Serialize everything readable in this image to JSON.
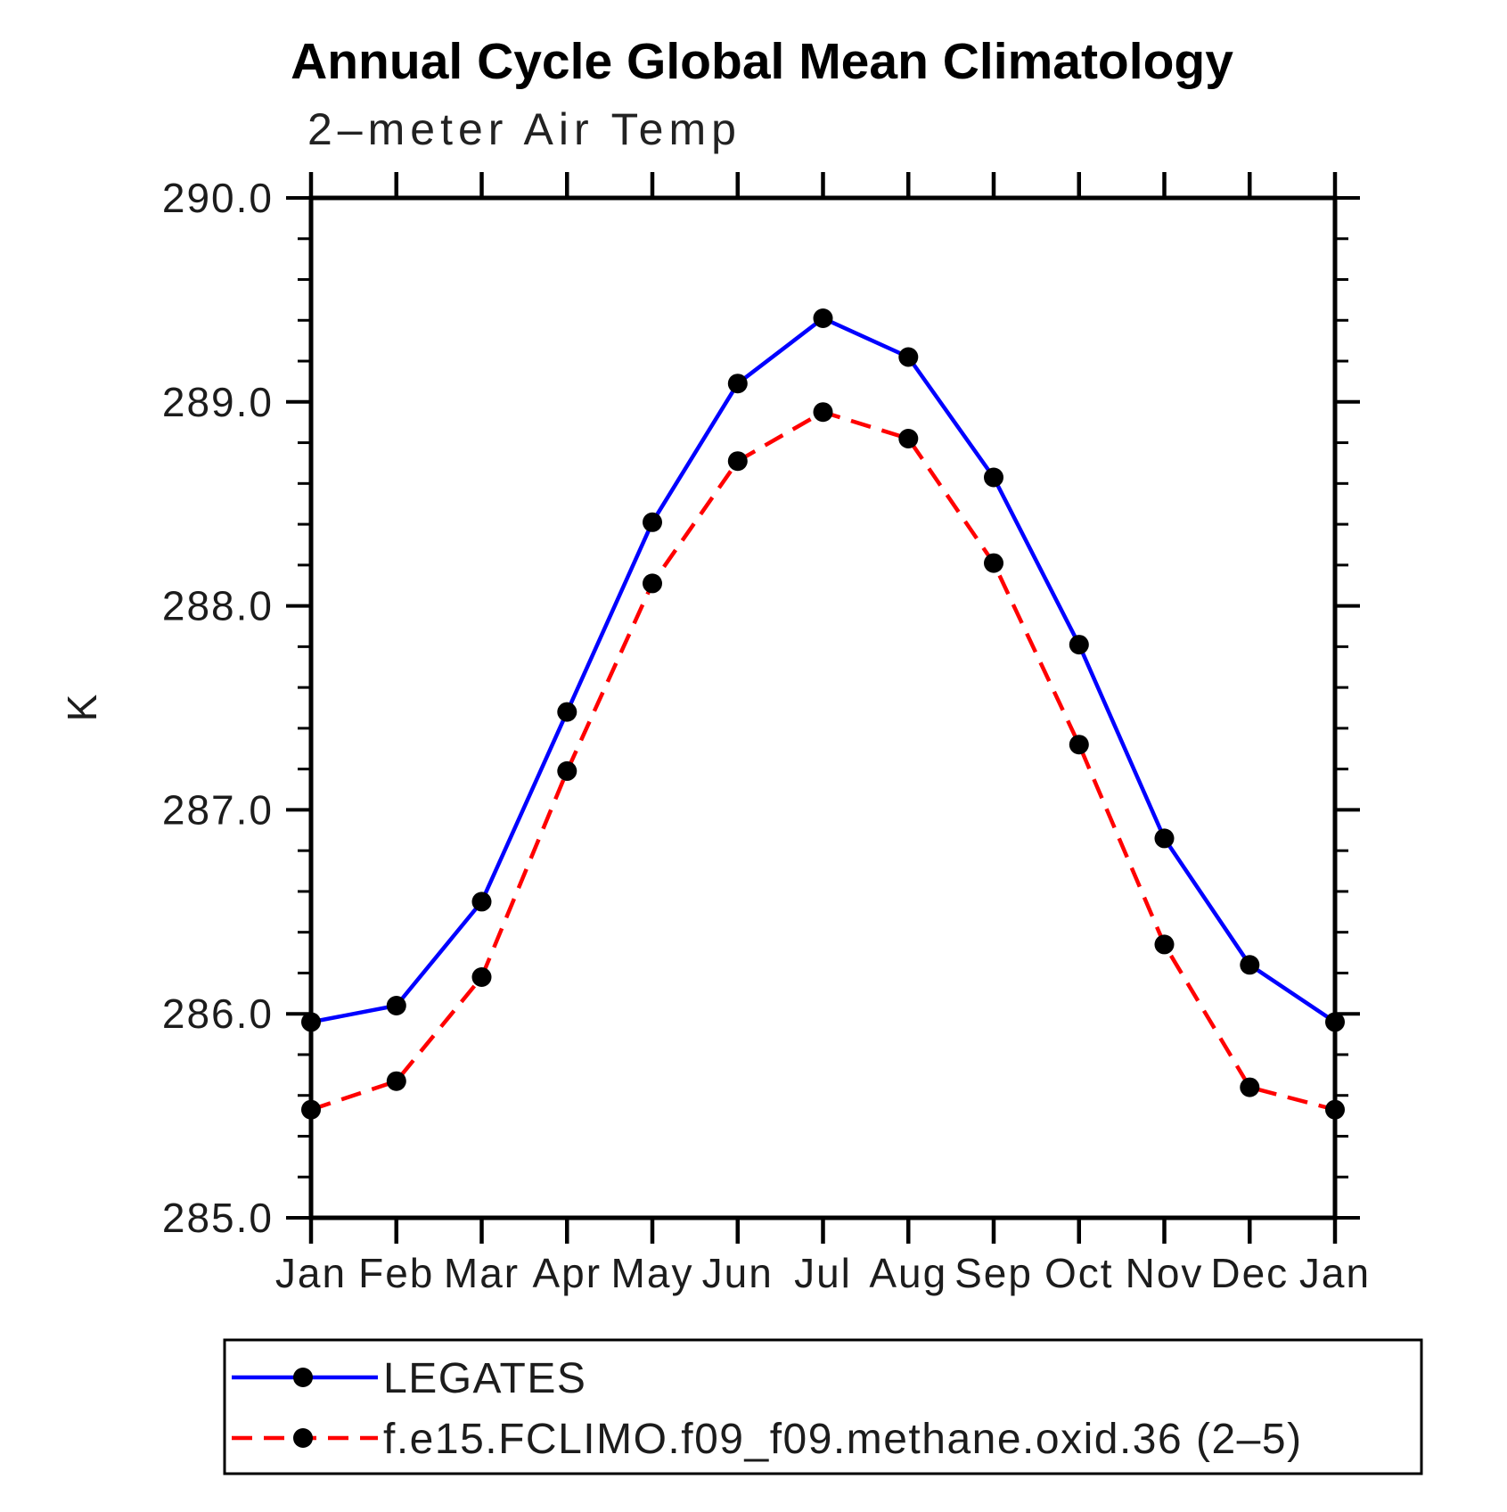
{
  "title": "Annual Cycle Global Mean Climatology",
  "subtitle": "2–meter Air Temp",
  "ylabel": "K",
  "colors": {
    "background": "#ffffff",
    "axis": "#000000",
    "marker": "#000000",
    "series1": "#0000ff",
    "series2": "#ff0000"
  },
  "chart_data": {
    "type": "line",
    "categories": [
      "Jan",
      "Feb",
      "Mar",
      "Apr",
      "May",
      "Jun",
      "Jul",
      "Aug",
      "Sep",
      "Oct",
      "Nov",
      "Dec",
      "Jan"
    ],
    "series": [
      {
        "name": "LEGATES",
        "color": "#0000ff",
        "line_style": "solid",
        "marker": "filled-circle",
        "values": [
          285.96,
          286.04,
          286.55,
          287.48,
          288.41,
          289.09,
          289.41,
          289.22,
          288.63,
          287.81,
          286.86,
          286.24,
          285.96
        ]
      },
      {
        "name": "f.e15.FCLIMO.f09_f09.methane.oxid.36 (2–5)",
        "color": "#ff0000",
        "line_style": "dashed",
        "marker": "filled-circle",
        "values": [
          285.53,
          285.67,
          286.18,
          287.19,
          288.11,
          288.71,
          288.95,
          288.82,
          288.21,
          287.32,
          286.34,
          285.64,
          285.53
        ]
      }
    ],
    "ylim": [
      285.0,
      290.0
    ],
    "ytick_major_step": 1.0,
    "ytick_minor_step": 0.2,
    "ytick_labels": [
      "285.0",
      "286.0",
      "287.0",
      "288.0",
      "289.0",
      "290.0"
    ],
    "grid": "off",
    "legend_position": "bottom-left-box"
  }
}
